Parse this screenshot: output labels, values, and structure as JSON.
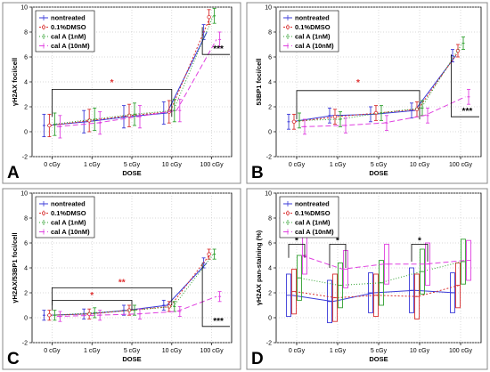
{
  "chart_data": [
    {
      "panel_label": "A",
      "type": "line",
      "xlabel": "DOSE",
      "ylabel": "γH2AX foci/cell",
      "categories": [
        "0 cGy",
        "1 cGy",
        "5 cGy",
        "10 cGy",
        "100 cGy"
      ],
      "ylim": [
        -2,
        10
      ],
      "yticks": [
        -2,
        0,
        2,
        4,
        6,
        8,
        10
      ],
      "grid": true,
      "legend_position": "top-left",
      "series": [
        {
          "name": "nontreated",
          "values": [
            0.5,
            0.8,
            1.2,
            1.5,
            8.0
          ],
          "errors": [
            0.9,
            0.9,
            0.9,
            0.9,
            0.6
          ]
        },
        {
          "name": "0.1%DMSO",
          "values": [
            0.5,
            0.9,
            1.3,
            1.6,
            9.2
          ],
          "errors": [
            0.9,
            0.9,
            0.9,
            0.9,
            0.6
          ]
        },
        {
          "name": "cal A (1nM)",
          "values": [
            0.6,
            1.0,
            1.4,
            1.7,
            9.3
          ],
          "errors": [
            0.9,
            0.9,
            0.9,
            0.9,
            0.6
          ]
        },
        {
          "name": "cal A (10nM)",
          "values": [
            0.4,
            0.7,
            1.2,
            1.7,
            7.4
          ],
          "errors": [
            0.9,
            0.9,
            0.9,
            0.9,
            0.6
          ]
        }
      ],
      "annotations": [
        {
          "text": "*",
          "color": "#e03030"
        },
        {
          "text": "***",
          "color": "#000000"
        }
      ]
    },
    {
      "panel_label": "B",
      "type": "line",
      "xlabel": "DOSE",
      "ylabel": "53BP1 foci/cell",
      "categories": [
        "0 cGy",
        "1 cGy",
        "5 cGy",
        "10 cGy",
        "100 cGy"
      ],
      "ylim": [
        -2,
        10
      ],
      "yticks": [
        -2,
        0,
        2,
        4,
        6,
        8,
        10
      ],
      "grid": true,
      "legend_position": "top-left",
      "series": [
        {
          "name": "nontreated",
          "values": [
            0.8,
            1.3,
            1.4,
            1.7,
            6.1
          ],
          "errors": [
            0.6,
            0.6,
            0.6,
            0.6,
            0.5
          ]
        },
        {
          "name": "0.1%DMSO",
          "values": [
            0.8,
            1.2,
            1.5,
            1.8,
            6.5
          ],
          "errors": [
            0.6,
            0.6,
            0.6,
            0.6,
            0.5
          ]
        },
        {
          "name": "cal A (1nM)",
          "values": [
            0.9,
            1.0,
            1.5,
            1.9,
            7.1
          ],
          "errors": [
            0.6,
            0.6,
            0.6,
            0.6,
            0.5
          ]
        },
        {
          "name": "cal A (10nM)",
          "values": [
            0.4,
            0.5,
            0.7,
            1.3,
            2.8
          ],
          "errors": [
            0.6,
            0.6,
            0.6,
            0.6,
            0.6
          ]
        }
      ],
      "annotations": [
        {
          "text": "*",
          "color": "#e03030"
        },
        {
          "text": "***",
          "color": "#000000"
        }
      ]
    },
    {
      "panel_label": "C",
      "type": "line",
      "xlabel": "DOSE",
      "ylabel": "γH2AX/53BP1 foci/cell",
      "categories": [
        "0 cGy",
        "1 cGy",
        "5 cGy",
        "10 cGy",
        "100 cGy"
      ],
      "ylim": [
        -2,
        10
      ],
      "yticks": [
        -2,
        0,
        2,
        4,
        6,
        8,
        10
      ],
      "grid": true,
      "legend_position": "top-left",
      "series": [
        {
          "name": "nontreated",
          "values": [
            0.2,
            0.3,
            0.6,
            1.0,
            4.4
          ],
          "errors": [
            0.4,
            0.4,
            0.4,
            0.4,
            0.4
          ]
        },
        {
          "name": "0.1%DMSO",
          "values": [
            0.2,
            0.3,
            0.6,
            0.9,
            5.1
          ],
          "errors": [
            0.4,
            0.4,
            0.4,
            0.4,
            0.4
          ]
        },
        {
          "name": "cal A (1nM)",
          "values": [
            0.2,
            0.4,
            0.6,
            0.9,
            5.1
          ],
          "errors": [
            0.4,
            0.4,
            0.4,
            0.4,
            0.4
          ]
        },
        {
          "name": "cal A (10nM)",
          "values": [
            0.1,
            0.2,
            0.3,
            0.5,
            1.7
          ],
          "errors": [
            0.4,
            0.4,
            0.4,
            0.4,
            0.4
          ]
        }
      ],
      "annotations": [
        {
          "text": "*",
          "color": "#e03030"
        },
        {
          "text": "**",
          "color": "#e03030"
        },
        {
          "text": "***",
          "color": "#000000"
        }
      ]
    },
    {
      "panel_label": "D",
      "type": "line",
      "xlabel": "DOSE",
      "ylabel": "γH2AX pan-staining (%)",
      "categories": [
        "0 cGy",
        "1 cGy",
        "5 cGy",
        "10 cGy",
        "100 cGy"
      ],
      "ylim": [
        -2,
        10
      ],
      "yticks": [
        -2,
        0,
        2,
        4,
        6,
        8,
        10
      ],
      "grid": true,
      "legend_position": "top-left",
      "series": [
        {
          "name": "nontreated",
          "values": [
            1.8,
            1.3,
            2.0,
            2.2,
            2.0
          ],
          "errors": [
            1.7,
            1.7,
            1.6,
            1.8,
            1.6
          ]
        },
        {
          "name": "0.1%DMSO",
          "values": [
            2.1,
            1.6,
            1.8,
            1.7,
            2.6
          ],
          "errors": [
            1.8,
            1.9,
            1.7,
            1.8,
            1.8
          ]
        },
        {
          "name": "cal A (1nM)",
          "values": [
            3.2,
            2.6,
            2.8,
            3.7,
            4.5
          ],
          "errors": [
            1.8,
            1.8,
            1.8,
            1.8,
            1.8
          ]
        },
        {
          "name": "cal A (10nM)",
          "values": [
            5.0,
            3.9,
            4.3,
            4.3,
            4.6
          ],
          "errors": [
            1.5,
            1.5,
            1.6,
            1.7,
            1.6
          ]
        }
      ],
      "annotations": [
        {
          "text": "*",
          "color": "#000000"
        },
        {
          "text": "*",
          "color": "#000000"
        },
        {
          "text": "*",
          "color": "#000000"
        }
      ]
    }
  ],
  "series_style": [
    {
      "color": "#3a3ad8",
      "dash": "",
      "marker": "none"
    },
    {
      "color": "#d83030",
      "dash": "2,2",
      "marker": "circle"
    },
    {
      "color": "#30a030",
      "dash": "1,2",
      "marker": "none"
    },
    {
      "color": "#e040e0",
      "dash": "6,3",
      "marker": "none"
    }
  ]
}
